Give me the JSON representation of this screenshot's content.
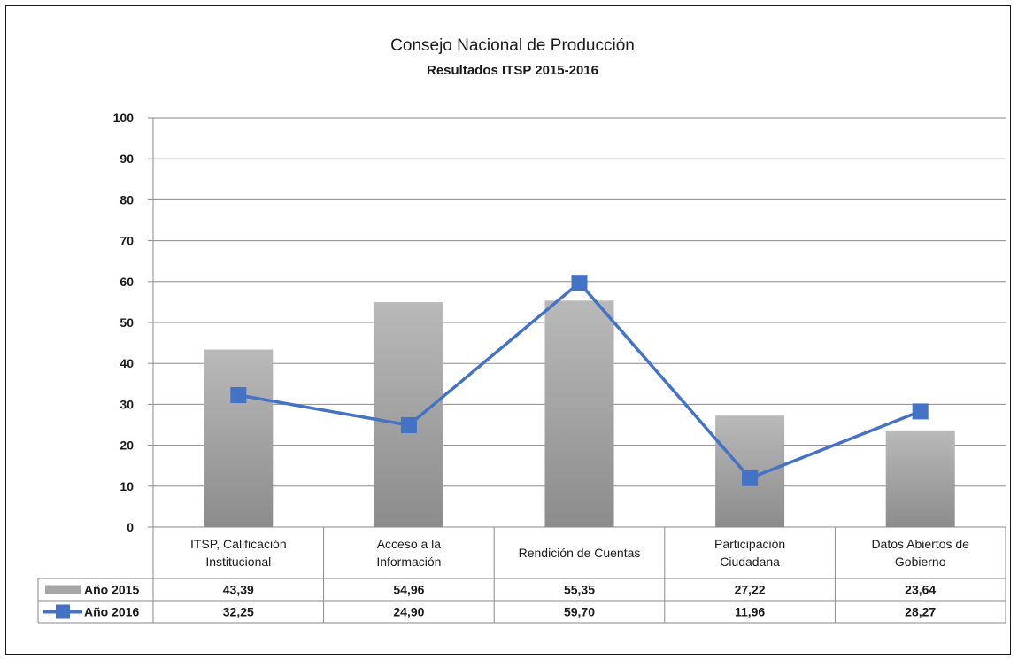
{
  "chart_data": {
    "type": "bar",
    "title": "Consejo Nacional de Producción",
    "subtitle": "Resultados ITSP 2015-2016",
    "categories": [
      [
        "ITSP, Calificación",
        "Institucional"
      ],
      [
        "Acceso a la",
        "Información"
      ],
      [
        "Rendición de Cuentas"
      ],
      [
        "Participación",
        "Ciudadana"
      ],
      [
        "Datos Abiertos de",
        "Gobierno"
      ]
    ],
    "series": [
      {
        "name": "Año 2015",
        "type": "bar",
        "values": [
          43.39,
          54.96,
          55.35,
          27.22,
          23.64
        ],
        "labels": [
          "43,39",
          "54,96",
          "55,35",
          "27,22",
          "23,64"
        ],
        "color": "#9e9e9e"
      },
      {
        "name": "Año 2016",
        "type": "line",
        "values": [
          32.25,
          24.9,
          59.7,
          11.96,
          28.27
        ],
        "labels": [
          "32,25",
          "24,90",
          "59,70",
          "11,96",
          "28,27"
        ],
        "color": "#4472c4"
      }
    ],
    "yticks": [
      "0",
      "10",
      "20",
      "30",
      "40",
      "50",
      "60",
      "70",
      "80",
      "90",
      "100"
    ],
    "ylim": [
      0,
      100
    ],
    "grid": true,
    "legend": "data-table"
  }
}
